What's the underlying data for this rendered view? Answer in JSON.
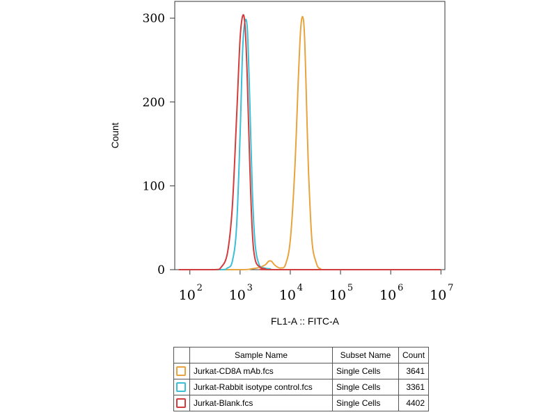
{
  "chart_data": {
    "type": "line",
    "title": "",
    "xlabel": "FL1-A :: FITC-A",
    "ylabel": "Count",
    "xscale": "log",
    "xlim": [
      50,
      12000000
    ],
    "ylim": [
      0,
      320
    ],
    "y_ticks": [
      0,
      100,
      200,
      300
    ],
    "x_ticks": [
      {
        "base": "10",
        "exp": "2",
        "value": 100
      },
      {
        "base": "10",
        "exp": "3",
        "value": 1000
      },
      {
        "base": "10",
        "exp": "4",
        "value": 10000
      },
      {
        "base": "10",
        "exp": "5",
        "value": 100000
      },
      {
        "base": "10",
        "exp": "6",
        "value": 1000000
      },
      {
        "base": "10",
        "exp": "7",
        "value": 10000000
      }
    ],
    "grid": false,
    "series": [
      {
        "name": "Jurkat-CD8A mAb.fcs",
        "color": "#E8A33D",
        "x": [
          60,
          1000,
          1700,
          2500,
          3200,
          3700,
          4200,
          4800,
          5600,
          6500,
          8000,
          10000,
          12300,
          14500,
          16000,
          17500,
          19000,
          20500,
          23000,
          27000,
          33000,
          40000,
          60000,
          10000000
        ],
        "y": [
          0,
          0,
          1,
          3,
          6,
          10,
          10,
          6,
          3,
          2,
          6,
          35,
          120,
          230,
          285,
          302,
          285,
          225,
          120,
          35,
          8,
          1,
          0,
          0
        ]
      },
      {
        "name": "Jurkat-Rabbit isotype control.fcs",
        "color": "#3BBFD6",
        "x": [
          60,
          400,
          560,
          700,
          850,
          1000,
          1120,
          1250,
          1400,
          1560,
          1750,
          2000,
          2400,
          3000,
          4000,
          6000,
          10000000
        ],
        "y": [
          0,
          0,
          2,
          10,
          50,
          160,
          260,
          296,
          285,
          200,
          95,
          30,
          6,
          2,
          1,
          0,
          0
        ]
      },
      {
        "name": "Jurkat-Blank.fcs",
        "color": "#D23C3C",
        "x": [
          60,
          300,
          420,
          560,
          700,
          850,
          1000,
          1130,
          1250,
          1380,
          1550,
          1750,
          2000,
          2500,
          3200,
          5000,
          10000000
        ],
        "y": [
          0,
          0,
          3,
          20,
          75,
          180,
          275,
          303,
          292,
          235,
          130,
          45,
          12,
          3,
          1,
          0,
          0
        ]
      }
    ]
  },
  "legend": {
    "headers": [
      "Sample Name",
      "Subset Name",
      "Count"
    ],
    "rows": [
      {
        "sample": "Jurkat-CD8A mAb.fcs",
        "subset": "Single Cells",
        "count": "3641",
        "color": "#E8A33D"
      },
      {
        "sample": "Jurkat-Rabbit isotype control.fcs",
        "subset": "Single Cells",
        "count": "3361",
        "color": "#3BBFD6"
      },
      {
        "sample": "Jurkat-Blank.fcs",
        "subset": "Single Cells",
        "count": "4402",
        "color": "#D23C3C"
      }
    ]
  }
}
